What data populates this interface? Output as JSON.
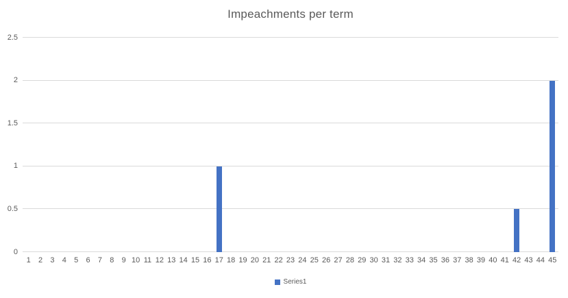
{
  "title": "Impeachments per term",
  "legend": {
    "series_label": "Series1",
    "swatch_color": "#4472C4",
    "position": "bottom"
  },
  "colors": {
    "bar": "#4472C4",
    "gridline": "#D9D9D9",
    "axis_line": "#D9D9D9",
    "tick_text": "#595959",
    "title_text": "#595959",
    "background": "#FFFFFF"
  },
  "chart_data": {
    "type": "bar",
    "title": "Impeachments per term",
    "series_name": "Series1",
    "categories": [
      "1",
      "2",
      "3",
      "4",
      "5",
      "6",
      "7",
      "8",
      "9",
      "10",
      "11",
      "12",
      "13",
      "14",
      "15",
      "16",
      "17",
      "18",
      "19",
      "20",
      "21",
      "22",
      "23",
      "24",
      "25",
      "26",
      "27",
      "28",
      "29",
      "30",
      "31",
      "32",
      "33",
      "34",
      "35",
      "36",
      "37",
      "38",
      "39",
      "40",
      "41",
      "42",
      "43",
      "44",
      "45"
    ],
    "values": [
      0,
      0,
      0,
      0,
      0,
      0,
      0,
      0,
      0,
      0,
      0,
      0,
      0,
      0,
      0,
      0,
      1,
      0,
      0,
      0,
      0,
      0,
      0,
      0,
      0,
      0,
      0,
      0,
      0,
      0,
      0,
      0,
      0,
      0,
      0,
      0,
      0,
      0,
      0,
      0,
      0,
      0.5,
      0,
      0,
      2
    ],
    "xlabel": "",
    "ylabel": "",
    "ylim": [
      0,
      2.5
    ],
    "yticks": [
      0,
      0.5,
      1,
      1.5,
      2,
      2.5
    ],
    "ytick_labels": [
      "0",
      "0.5",
      "1",
      "1.5",
      "2",
      "2.5"
    ],
    "grid": "horizontal",
    "legend_position": "bottom"
  }
}
